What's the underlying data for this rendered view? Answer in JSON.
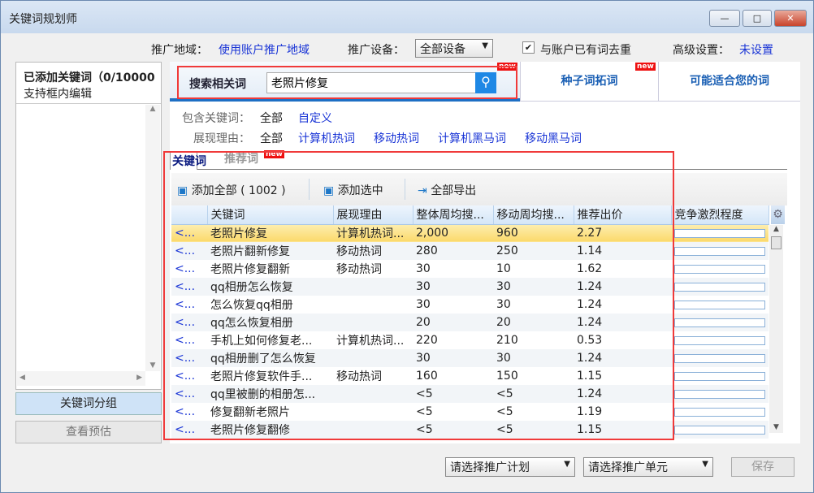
{
  "window": {
    "title": "关键词规划师",
    "min": "—",
    "max": "□",
    "close": "✕"
  },
  "top": {
    "region_label": "推广地域：",
    "region_value": "使用账户推广地域",
    "device_label": "推广设备：",
    "device_value": "全部设备",
    "dedupe_label": "与账户已有词去重",
    "dedupe_checked": true,
    "advanced_label": "高级设置：",
    "advanced_value": "未设置"
  },
  "left": {
    "title": "已添加关键词（0/10000",
    "subtitle": "支持框内编辑",
    "group_button": "关键词分组",
    "preview_button": "查看预估"
  },
  "search": {
    "label": "搜索相关词",
    "value": "老照片修复",
    "new_badge": "new"
  },
  "tabs": [
    {
      "label": "种子词拓词",
      "badge": "new"
    },
    {
      "label": "可能适合您的词"
    }
  ],
  "filters": {
    "include_label": "包含关键词：",
    "include_all": "全部",
    "include_custom": "自定义",
    "reason_label": "展现理由：",
    "reason_all": "全部",
    "reasons": [
      "计算机热词",
      "移动热词",
      "计算机黑马词",
      "移动黑马词"
    ]
  },
  "subtabs": {
    "keywords": "关键词",
    "recommended": "推荐词",
    "badge": "new"
  },
  "toolbar": {
    "add_all": "添加全部 ( 1002 )",
    "add_selected": "添加选中",
    "export_all": "全部导出"
  },
  "table": {
    "headers": [
      "",
      "关键词",
      "展现理由",
      "整体周均搜...",
      "移动周均搜...",
      "推荐出价",
      "竞争激烈程度"
    ],
    "rows": [
      [
        "<...",
        "老照片修复",
        "计算机热词...",
        "2,000",
        "960",
        "2.27"
      ],
      [
        "<...",
        "老照片翻新修复",
        "移动热词",
        "280",
        "250",
        "1.14"
      ],
      [
        "<...",
        "老照片修复翻新",
        "移动热词",
        "30",
        "10",
        "1.62"
      ],
      [
        "<...",
        "qq相册怎么恢复",
        "",
        "30",
        "30",
        "1.24"
      ],
      [
        "<...",
        "怎么恢复qq相册",
        "",
        "30",
        "30",
        "1.24"
      ],
      [
        "<...",
        "qq怎么恢复相册",
        "",
        "20",
        "20",
        "1.24"
      ],
      [
        "<...",
        "手机上如何修复老...",
        "计算机热词...",
        "220",
        "210",
        "0.53"
      ],
      [
        "<...",
        "qq相册删了怎么恢复",
        "",
        "30",
        "30",
        "1.24"
      ],
      [
        "<...",
        "老照片修复软件手...",
        "移动热词",
        "160",
        "150",
        "1.15"
      ],
      [
        "<...",
        "qq里被删的相册怎...",
        "",
        "<5",
        "<5",
        "1.24"
      ],
      [
        "<...",
        "修复翻新老照片",
        "",
        "<5",
        "<5",
        "1.19"
      ],
      [
        "<...",
        "老照片修复翻修",
        "",
        "<5",
        "<5",
        "1.15"
      ]
    ]
  },
  "bottom": {
    "plan_select": "请选择推广计划",
    "unit_select": "请选择推广单元",
    "save": "保存"
  }
}
